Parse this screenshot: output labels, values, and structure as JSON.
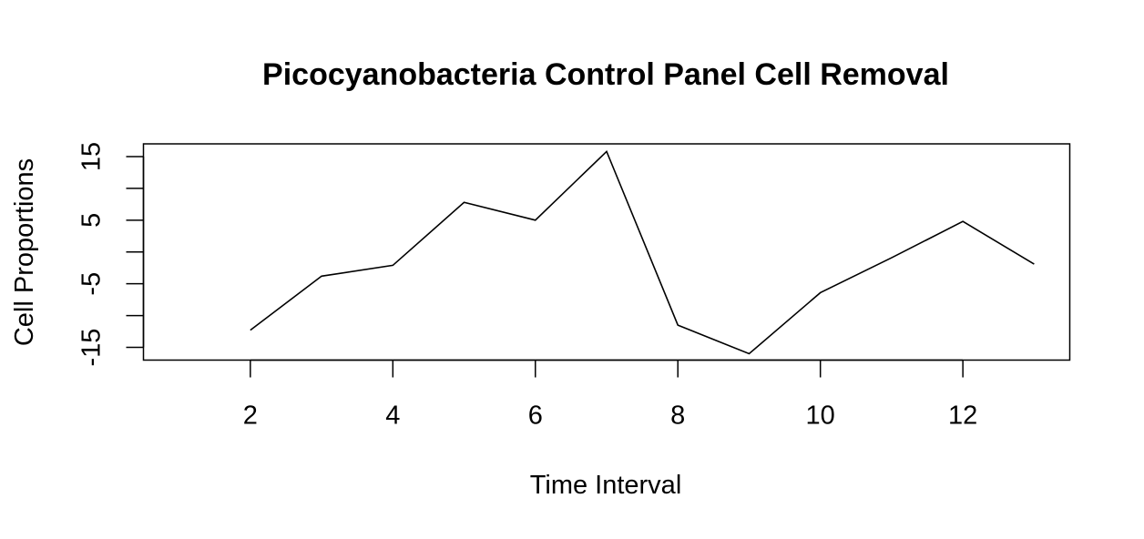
{
  "chart_data": {
    "type": "line",
    "title": "Picocyanobacteria Control Panel Cell Removal",
    "xlabel": "Time Interval",
    "ylabel": "Cell Proportions",
    "xlim": [
      0.5,
      13.5
    ],
    "ylim": [
      -17,
      17
    ],
    "x_ticks": [
      2,
      4,
      6,
      8,
      10,
      12
    ],
    "x_tick_labels": [
      "2",
      "4",
      "6",
      "8",
      "10",
      "12"
    ],
    "y_ticks": [
      -15,
      -10,
      -5,
      0,
      5,
      10,
      15
    ],
    "y_tick_labels": [
      "-15",
      "",
      "-5",
      "",
      "5",
      "",
      "15"
    ],
    "grid": false,
    "legend": "none",
    "series": [
      {
        "x": [
          2,
          3,
          4,
          5,
          6,
          7,
          8,
          9,
          10,
          11,
          12,
          13
        ],
        "y": [
          -12.3,
          -3.8,
          -2.1,
          7.8,
          5.0,
          15.8,
          -11.5,
          -16.0,
          -6.4,
          -0.9,
          4.8,
          -1.9
        ],
        "color": "#000000"
      }
    ]
  }
}
